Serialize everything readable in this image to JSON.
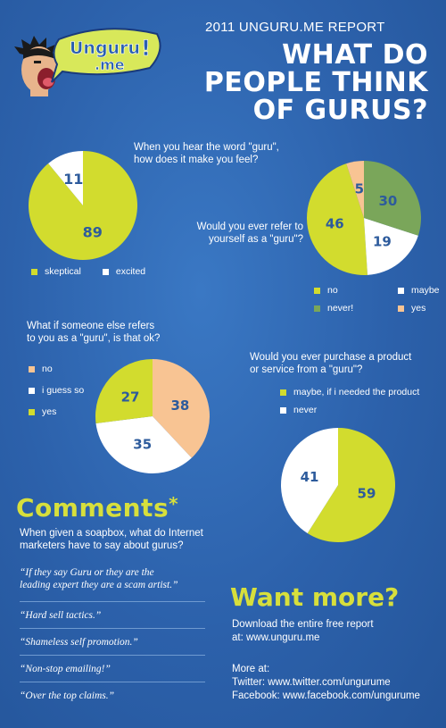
{
  "header": {
    "logo_line1": "Unguru",
    "logo_line2": ".me",
    "logo_bang": "!",
    "report_title": "2011 UNGURU.ME REPORT",
    "headline": [
      "WHAT DO",
      "PEOPLE THINK",
      "OF GURUS?"
    ]
  },
  "colors": {
    "background": "#2f66b0",
    "lime": "#d2dc2e",
    "white": "#ffffff",
    "green": "#7aa65a",
    "peach": "#f8c493",
    "number_text": "#2d5b9c",
    "accent_title": "#d7df3c"
  },
  "chart_data": [
    {
      "type": "pie",
      "question": [
        "When you hear the word \"guru\",",
        "how does it make you feel?"
      ],
      "slices": [
        {
          "label": "skeptical",
          "value": 89,
          "color": "#d2dc2e"
        },
        {
          "label": "excited",
          "value": 11,
          "color": "#ffffff"
        }
      ]
    },
    {
      "type": "pie",
      "question": [
        "Would you ever refer to",
        "yourself as a \"guru\"?"
      ],
      "slices": [
        {
          "label": "no",
          "value": 46,
          "color": "#d2dc2e"
        },
        {
          "label": "maybe",
          "value": 19,
          "color": "#ffffff"
        },
        {
          "label": "never!",
          "value": 30,
          "color": "#7aa65a"
        },
        {
          "label": "yes",
          "value": 5,
          "color": "#f8c493"
        }
      ]
    },
    {
      "type": "pie",
      "question": [
        "What if someone else refers",
        "to you as a \"guru\", is that ok?"
      ],
      "slices": [
        {
          "label": "no",
          "value": 38,
          "color": "#f8c493"
        },
        {
          "label": "i guess so",
          "value": 35,
          "color": "#ffffff"
        },
        {
          "label": "yes",
          "value": 27,
          "color": "#d2dc2e"
        }
      ]
    },
    {
      "type": "pie",
      "question": [
        "Would you ever purchase a product",
        "or service from a \"guru\"?"
      ],
      "slices": [
        {
          "label": "maybe, if i needed the product",
          "value": 59,
          "color": "#d2dc2e"
        },
        {
          "label": "never",
          "value": 41,
          "color": "#ffffff"
        }
      ]
    }
  ],
  "comments": {
    "title": "Comments",
    "asterisk": "*",
    "subtitle": [
      "When given a soapbox, what do Internet",
      "marketers have to say about gurus?"
    ],
    "quotes": [
      [
        "“If they say Guru or they are the",
        "leading expert they are a scam artist.”"
      ],
      [
        "“Hard sell tactics.”"
      ],
      [
        "“Shameless self promotion.”"
      ],
      [
        "“Non-stop emailing!”"
      ],
      [
        "“Over the top claims.”"
      ]
    ]
  },
  "more": {
    "title": "Want more?",
    "download": [
      "Download the entire free report",
      "at: www.unguru.me"
    ],
    "more_at": "More at:",
    "twitter": "Twitter: www.twitter.com/ungurume",
    "facebook": "Facebook: www.facebook.com/ungurume"
  }
}
